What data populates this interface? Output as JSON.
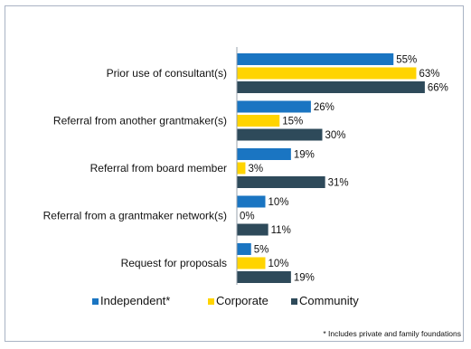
{
  "chart_data": {
    "type": "bar",
    "orientation": "horizontal",
    "categories": [
      "Prior use of consultant(s)",
      "Referral from another grantmaker(s)",
      "Referral from board member",
      "Referral from a grantmaker network(s)",
      "Request for proposals"
    ],
    "series": [
      {
        "name": "Independent*",
        "color": "#1a75c2",
        "values": [
          55,
          26,
          19,
          10,
          5
        ]
      },
      {
        "name": "Corporate",
        "color": "#ffd400",
        "values": [
          63,
          15,
          3,
          0,
          10
        ]
      },
      {
        "name": "Community",
        "color": "#2e4a5a",
        "values": [
          66,
          30,
          31,
          11,
          19
        ]
      }
    ],
    "value_suffix": "%",
    "xlim": [
      0,
      100
    ],
    "grid": false,
    "legend_position": "bottom",
    "footnote": "* Includes private and family foundations"
  }
}
